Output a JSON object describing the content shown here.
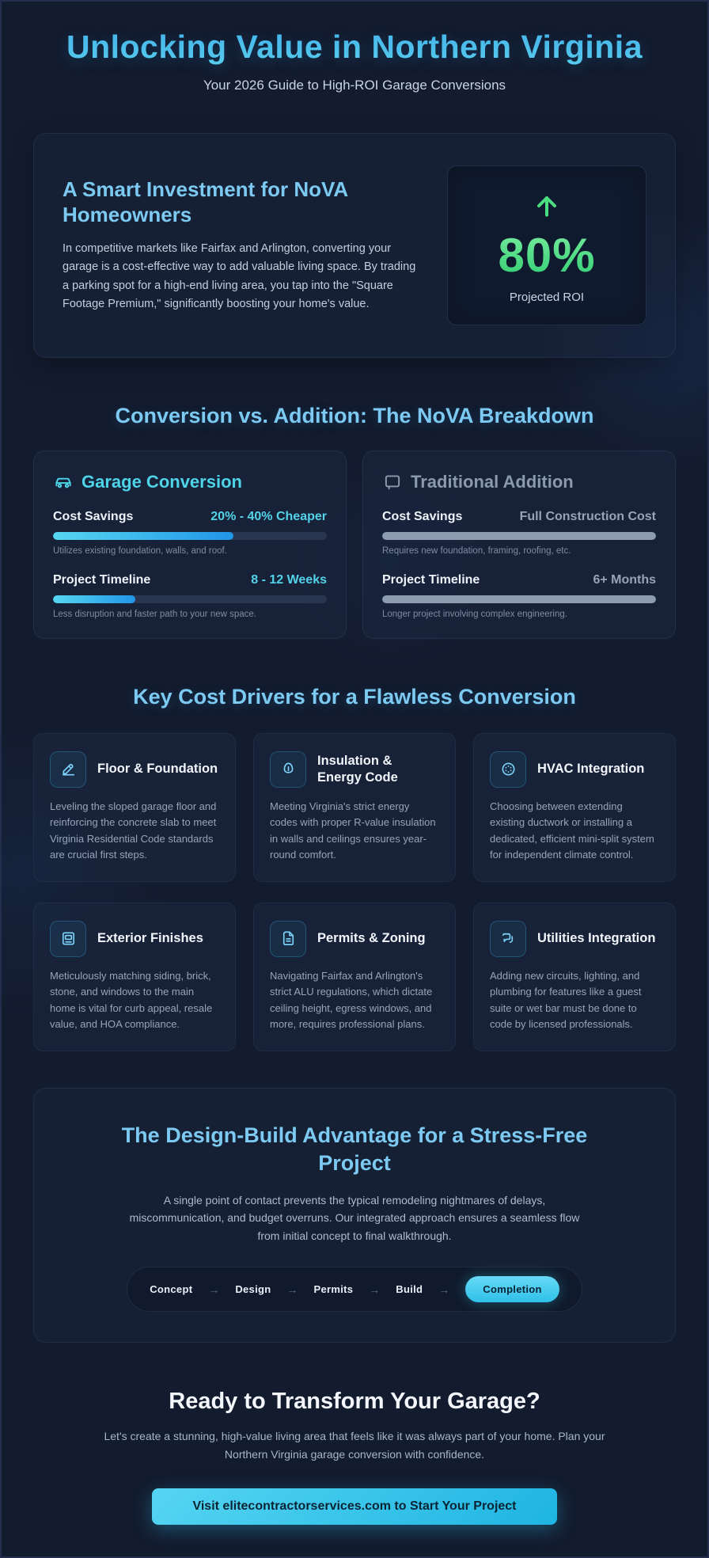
{
  "header": {
    "title": "Unlocking Value in Northern Virginia",
    "subtitle": "Your 2026 Guide to High-ROI Garage Conversions"
  },
  "intro": {
    "heading": "A Smart Investment for NoVA Homeowners",
    "body": "In competitive markets like Fairfax and Arlington, converting your garage is a cost-effective way to add valuable living space. By trading a parking spot for a high-end living area, you tap into the \"Square Footage Premium,\" significantly boosting your home's value.",
    "roi_value": "80%",
    "roi_label": "Projected ROI",
    "roi_icon": "arrow-up-icon"
  },
  "comparison": {
    "heading": "Conversion vs. Addition: The NoVA Breakdown",
    "cards": [
      {
        "title": "Garage Conversion",
        "icon": "car-icon",
        "rows": [
          {
            "label": "Cost Savings",
            "value": "20% - 40% Cheaper",
            "pct": 66,
            "note": "Utilizes existing foundation, walls, and roof."
          },
          {
            "label": "Project Timeline",
            "value": "8 - 12 Weeks",
            "pct": 30,
            "note": "Less disruption and faster path to your new space."
          }
        ]
      },
      {
        "title": "Traditional Addition",
        "icon": "window-frame-icon",
        "rows": [
          {
            "label": "Cost Savings",
            "value": "Full Construction Cost",
            "pct": 100,
            "note": "Requires new foundation, framing, roofing, etc."
          },
          {
            "label": "Project Timeline",
            "value": "6+ Months",
            "pct": 100,
            "note": "Longer project involving complex engineering."
          }
        ]
      }
    ]
  },
  "cost_drivers": {
    "heading": "Key Cost Drivers for a Flawless Conversion",
    "cards": [
      {
        "title": "Floor & Foundation",
        "icon": "pen-ruler-icon",
        "body": "Leveling the sloped garage floor and reinforcing the concrete slab to meet Virginia Residential Code standards are crucial first steps."
      },
      {
        "title": "Insulation & Energy Code",
        "icon": "insulation-icon",
        "body": "Meeting Virginia's strict energy codes with proper R-value insulation in walls and ceilings ensures year-round comfort."
      },
      {
        "title": "HVAC Integration",
        "icon": "vent-icon",
        "body": "Choosing between extending existing ductwork or installing a dedicated, efficient mini-split system for independent climate control."
      },
      {
        "title": "Exterior Finishes",
        "icon": "facade-window-icon",
        "body": "Meticulously matching siding, brick, stone, and windows to the main home is vital for curb appeal, resale value, and HOA compliance."
      },
      {
        "title": "Permits & Zoning",
        "icon": "document-icon",
        "body": "Navigating Fairfax and Arlington's strict ALU regulations, which dictate ceiling height, egress windows, and more, requires professional plans."
      },
      {
        "title": "Utilities Integration",
        "icon": "utilities-plug-icon",
        "body": "Adding new circuits, lighting, and plumbing for features like a guest suite or wet bar must be done to code by licensed professionals."
      }
    ]
  },
  "design_build": {
    "heading": "The Design-Build Advantage for a Stress-Free Project",
    "body": "A single point of contact prevents the typical remodeling nightmares of delays, miscommunication, and budget overruns. Our integrated approach ensures a seamless flow from initial concept to final walkthrough.",
    "arrow": "→",
    "steps": [
      "Concept",
      "Design",
      "Permits",
      "Build",
      "Completion"
    ],
    "active_step": "Completion"
  },
  "cta": {
    "heading": "Ready to Transform Your Garage?",
    "body": "Let's create a stunning, high-value living area that feels like it was always part of your home. Plan your Northern Virginia garage conversion with confidence.",
    "button": "Visit elitecontractorservices.com to Start Your Project"
  },
  "colors": {
    "background": "#131b2e",
    "card": "#1a243c",
    "heading_blue": "#7cc9f1",
    "accent_cyan": "#4ed4e8",
    "roi_green": "#4ade80",
    "muted_gray": "#97a4b8",
    "progress_track": "#2a3650"
  }
}
